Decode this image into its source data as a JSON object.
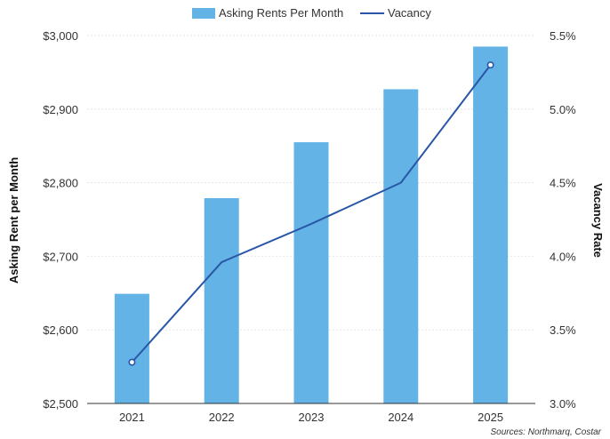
{
  "chart_data": {
    "type": "bar",
    "categories": [
      "2021",
      "2022",
      "2023",
      "2024",
      "2025"
    ],
    "series": [
      {
        "name": "Asking Rents Per Month",
        "type": "bar",
        "axis": "left",
        "values": [
          2649,
          2779,
          2855,
          2927,
          2985
        ],
        "color": "#63b3e6"
      },
      {
        "name": "Vacancy",
        "type": "line",
        "axis": "right",
        "values": [
          3.28,
          3.96,
          4.22,
          4.5,
          5.3
        ],
        "color": "#2956a6"
      }
    ],
    "ylabel": "Asking Rent per Month",
    "y2label": "Vacancy Rate",
    "ylim": [
      2500,
      3000
    ],
    "y2lim": [
      3.0,
      5.5
    ],
    "yticks": [
      "$2,500",
      "$2,600",
      "$2,700",
      "$2,800",
      "$2,900",
      "$3,000"
    ],
    "y2ticks": [
      "3.0%",
      "3.5%",
      "4.0%",
      "4.5%",
      "5.0%",
      "5.5%"
    ],
    "grid": true,
    "legend": "top-center",
    "source": "Sources: Northmarq, Costar"
  }
}
